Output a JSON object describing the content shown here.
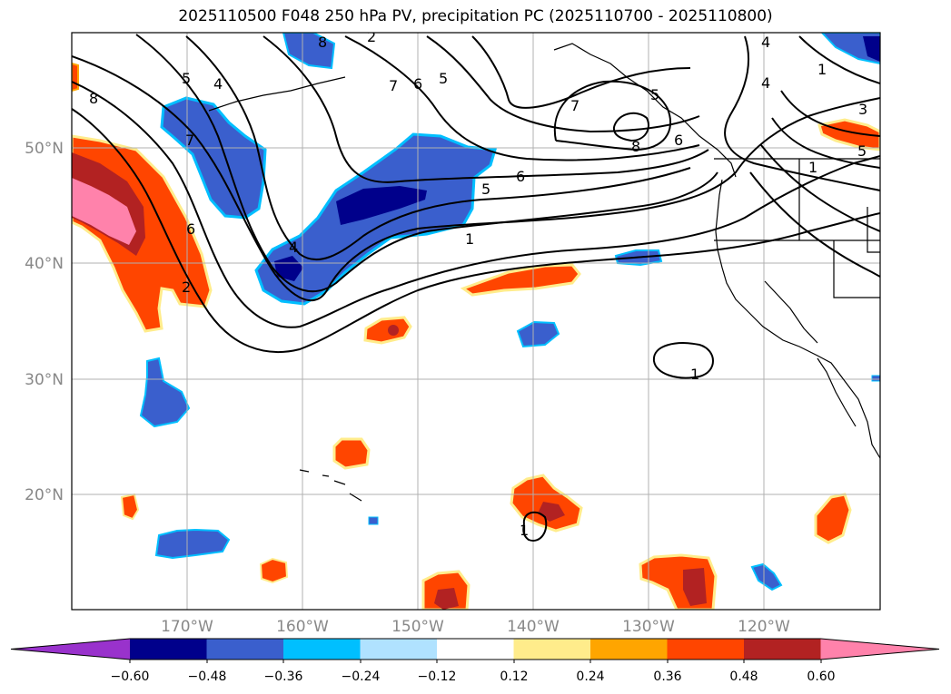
{
  "title": "2025110500 F048 250 hPa PV, precipitation PC (2025110700 - 2025110800)",
  "map": {
    "lat_labels": [
      "50°N",
      "40°N",
      "30°N",
      "20°N"
    ],
    "lon_labels": [
      "170°W",
      "160°W",
      "150°W",
      "140°W",
      "130°W",
      "120°W"
    ],
    "extent": {
      "lon_min": -180,
      "lon_max": -110,
      "lat_min": 10,
      "lat_max": 60
    },
    "gridlines": true
  },
  "pv_contour_labels": [
    "8",
    "5",
    "4",
    "7",
    "6",
    "4",
    "2",
    "8",
    "6",
    "5",
    "7",
    "6",
    "5",
    "1",
    "2",
    "7",
    "8",
    "6",
    "5",
    "1",
    "4",
    "3",
    "4",
    "1",
    "5",
    "1",
    "1"
  ],
  "colorbar": {
    "ticks": [
      "−0.60",
      "−0.48",
      "−0.36",
      "−0.24",
      "−0.12",
      "0.12",
      "0.24",
      "0.36",
      "0.48",
      "0.60"
    ],
    "levels": [
      -0.6,
      -0.48,
      -0.36,
      -0.24,
      -0.12,
      0.12,
      0.24,
      0.36,
      0.48,
      0.6
    ],
    "colors": [
      "#9932cc",
      "#00008b",
      "#3a5fcd",
      "#00bfff",
      "#b0e2ff",
      "#ffffff",
      "#ffec8b",
      "#ffa500",
      "#ff4500",
      "#b22222",
      "#ff82ab"
    ],
    "extend": "both"
  }
}
